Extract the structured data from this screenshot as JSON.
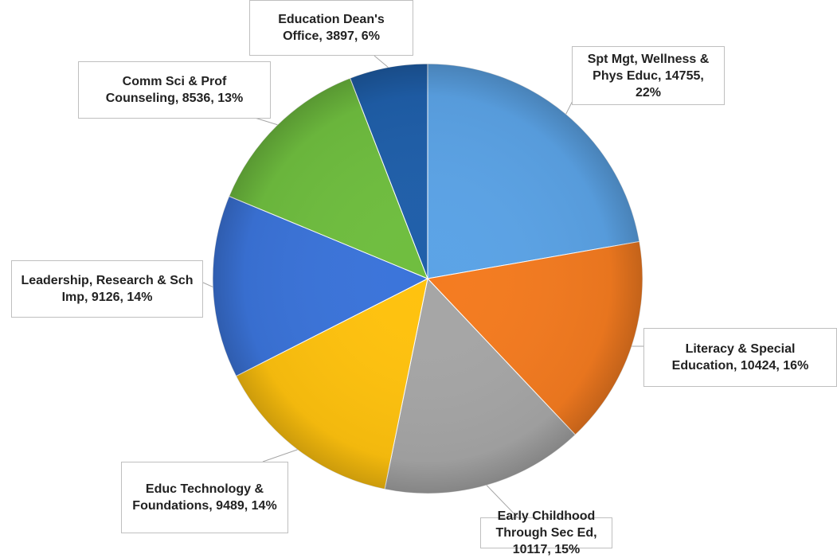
{
  "chart_data": {
    "type": "pie",
    "value_labels": [
      "Spt Mgt, Wellness & Phys Educ, 14755, 22%",
      "Literacy & Special Education, 10424, 16%",
      "Early Childhood Through Sec Ed, 10117, 15%",
      "Educ Technology & Foundations, 9489, 14%",
      "Leadership, Research & Sch Imp, 9126, 14%",
      "Comm Sci & Prof Counseling, 8536, 13%",
      "Education Dean's Office, 3897, 6%"
    ],
    "values": [
      14755,
      10424,
      10117,
      9489,
      9126,
      8536,
      3897
    ],
    "colors": [
      "#5ba3e6",
      "#f47b20",
      "#a6a6a6",
      "#ffc20e",
      "#3b74da",
      "#6fbe3f",
      "#1f5faa"
    ]
  }
}
